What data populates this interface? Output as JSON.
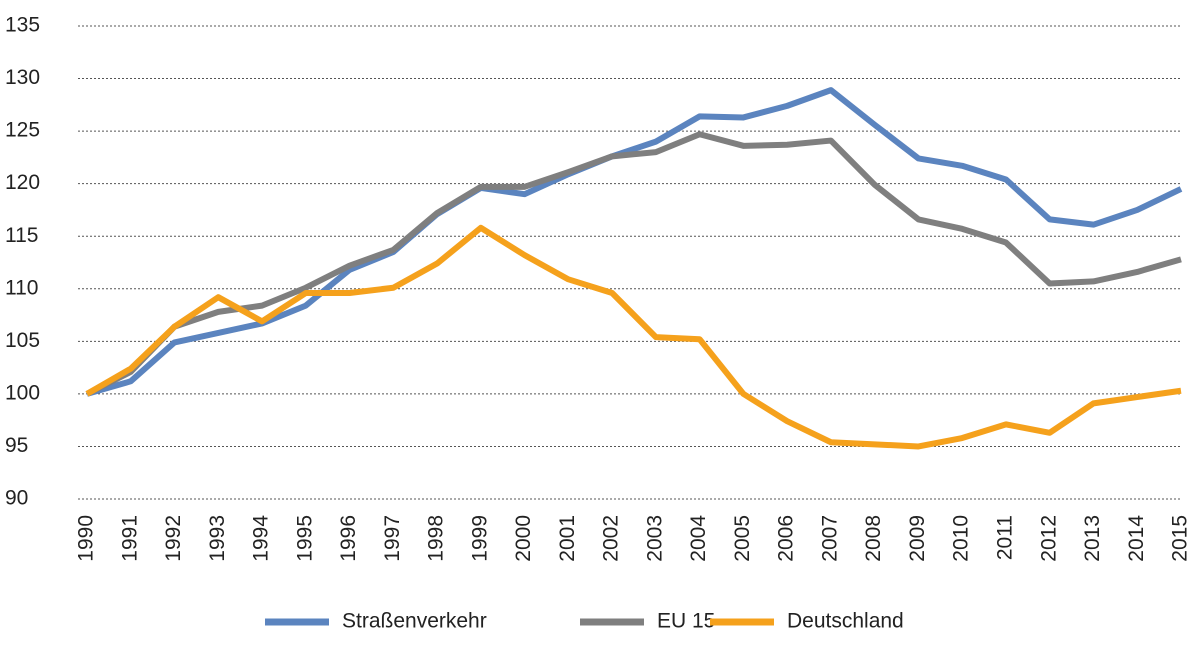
{
  "chart_data": {
    "type": "line",
    "categories": [
      "1990",
      "1991",
      "1992",
      "1993",
      "1994",
      "1995",
      "1996",
      "1997",
      "1998",
      "1999",
      "2000",
      "2001",
      "2002",
      "2003",
      "2004",
      "2005",
      "2006",
      "2007",
      "2008",
      "2009",
      "2010",
      "2011",
      "2012",
      "2013",
      "2014",
      "2015"
    ],
    "series": [
      {
        "name": "Straßenverkehr",
        "color": "#5b84bf",
        "values": [
          100,
          101.2,
          104.9,
          105.8,
          106.7,
          108.4,
          111.8,
          113.5,
          117.1,
          119.6,
          119.0,
          120.9,
          122.6,
          124.0,
          126.4,
          126.3,
          127.4,
          128.9,
          125.6,
          122.4,
          121.7,
          120.4,
          116.6,
          116.1,
          117.5,
          119.5
        ]
      },
      {
        "name": "EU 15",
        "color": "#7f7f7f",
        "values": [
          100,
          102.1,
          106.4,
          107.8,
          108.4,
          110.1,
          112.2,
          113.7,
          117.2,
          119.7,
          119.7,
          121.1,
          122.6,
          123.0,
          124.7,
          123.6,
          123.7,
          124.1,
          119.9,
          116.6,
          115.7,
          114.4,
          110.5,
          110.7,
          111.6,
          112.8
        ]
      },
      {
        "name": "Deutschland",
        "color": "#f5a11c",
        "values": [
          100,
          102.4,
          106.4,
          109.2,
          106.9,
          109.6,
          109.6,
          110.1,
          112.4,
          115.8,
          113.2,
          110.9,
          109.6,
          105.4,
          105.2,
          100.0,
          97.4,
          95.4,
          95.2,
          95.0,
          95.8,
          97.1,
          96.3,
          99.1,
          99.7,
          100.3
        ]
      }
    ],
    "ylim": [
      90,
      135
    ],
    "yticks": [
      90,
      95,
      100,
      105,
      110,
      115,
      120,
      125,
      130,
      135
    ],
    "grid": true,
    "legend": "bottom"
  }
}
